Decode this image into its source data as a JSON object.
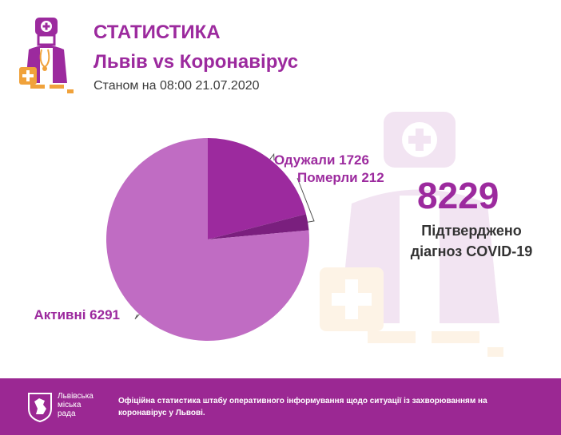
{
  "header": {
    "title": "СТАТИСТИКА",
    "subtitle": "Львів vs Коронавірус",
    "date": "Станом на 08:00 21.07.2020"
  },
  "summary": {
    "total": "8229",
    "caption_line1": "Підтверджено",
    "caption_line2": "діагноз COVID-19"
  },
  "chart_data": {
    "type": "pie",
    "title": "",
    "slices": [
      {
        "name": "Одужали",
        "value": 1726,
        "label": "Одужали 1726",
        "color": "#9c2a9e"
      },
      {
        "name": "Померли",
        "value": 212,
        "label": "Померли 212",
        "color": "#7a1f7e"
      },
      {
        "name": "Активні",
        "value": 6291,
        "label": "Активні 6291",
        "color": "#c06cc3"
      }
    ]
  },
  "footer": {
    "council_line1": "Львівська",
    "council_line2": "міська",
    "council_line3": "рада",
    "text": "Офіційна статистика штабу оперативного інформування щодо ситуації із захворюванням на коронавірус у Львові."
  },
  "colors": {
    "accent": "#9c2a9e",
    "footer_bg": "#9b2893",
    "orange": "#f0a23b"
  },
  "icons": {
    "header_logo": "doctor-icon",
    "watermark": "doctor-watermark-icon",
    "council_logo": "lion-coat-of-arms-icon"
  }
}
